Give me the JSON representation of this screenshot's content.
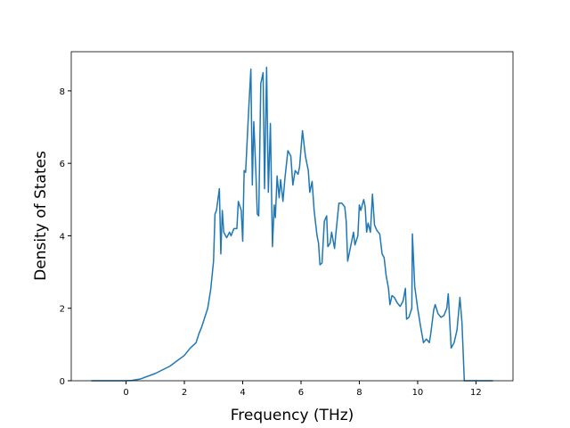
{
  "chart_data": {
    "type": "line",
    "x_label": "Frequency (THz)",
    "y_label": "Density of States",
    "x": [
      -1.19,
      -0.5,
      0,
      0.2,
      0.5,
      1.0,
      1.5,
      2.0,
      2.2,
      2.4,
      2.5,
      2.6,
      2.7,
      2.8,
      2.9,
      3.0,
      3.05,
      3.1,
      3.2,
      3.25,
      3.3,
      3.35,
      3.45,
      3.55,
      3.6,
      3.7,
      3.8,
      3.85,
      3.95,
      4.0,
      4.05,
      4.1,
      4.2,
      4.28,
      4.33,
      4.38,
      4.45,
      4.5,
      4.55,
      4.62,
      4.7,
      4.75,
      4.82,
      4.88,
      4.95,
      5.02,
      5.08,
      5.12,
      5.18,
      5.25,
      5.3,
      5.38,
      5.45,
      5.55,
      5.65,
      5.72,
      5.8,
      5.9,
      5.95,
      6.05,
      6.15,
      6.25,
      6.3,
      6.38,
      6.45,
      6.55,
      6.6,
      6.65,
      6.72,
      6.8,
      6.88,
      6.92,
      7.0,
      7.05,
      7.15,
      7.2,
      7.3,
      7.4,
      7.5,
      7.55,
      7.6,
      7.7,
      7.8,
      7.85,
      7.95,
      8.0,
      8.05,
      8.15,
      8.2,
      8.25,
      8.3,
      8.38,
      8.45,
      8.52,
      8.6,
      8.7,
      8.78,
      8.85,
      8.92,
      9.0,
      9.05,
      9.12,
      9.2,
      9.3,
      9.4,
      9.5,
      9.58,
      9.62,
      9.7,
      9.8,
      9.82,
      9.9,
      10.0,
      10.1,
      10.2,
      10.3,
      10.4,
      10.45,
      10.55,
      10.6,
      10.7,
      10.8,
      10.9,
      11.0,
      11.05,
      11.15,
      11.25,
      11.35,
      11.45,
      11.52,
      11.6,
      12.58
    ],
    "series": [
      {
        "color": "#1f77b4",
        "values": [
          0,
          0,
          0,
          0.01,
          0.05,
          0.2,
          0.4,
          0.7,
          0.9,
          1.05,
          1.3,
          1.5,
          1.75,
          2.0,
          2.5,
          3.3,
          4.6,
          4.7,
          5.3,
          3.5,
          4.7,
          4.1,
          3.95,
          4.1,
          4.0,
          4.2,
          4.2,
          4.95,
          4.7,
          3.85,
          5.8,
          5.75,
          7.4,
          8.6,
          5.4,
          7.15,
          5.8,
          4.6,
          4.55,
          8.2,
          8.5,
          5.3,
          8.65,
          5.2,
          7.1,
          3.7,
          4.85,
          4.5,
          5.65,
          5.05,
          5.55,
          4.95,
          5.6,
          6.35,
          6.2,
          5.4,
          5.8,
          5.7,
          5.9,
          6.9,
          6.2,
          5.8,
          5.2,
          5.5,
          4.7,
          4.0,
          3.8,
          3.2,
          3.25,
          4.4,
          4.55,
          3.7,
          3.8,
          4.1,
          3.65,
          4.1,
          4.9,
          4.9,
          4.8,
          4.4,
          3.3,
          3.7,
          4.1,
          3.75,
          4.0,
          4.85,
          4.7,
          5.0,
          4.8,
          4.1,
          4.35,
          4.1,
          5.15,
          4.3,
          4.15,
          4.05,
          3.5,
          3.4,
          2.9,
          2.55,
          2.1,
          2.35,
          2.3,
          2.15,
          2.05,
          2.2,
          2.55,
          1.7,
          1.75,
          2.0,
          4.05,
          2.6,
          2.0,
          1.5,
          1.05,
          1.15,
          1.05,
          1.3,
          1.95,
          2.1,
          1.85,
          1.75,
          1.8,
          2.0,
          2.4,
          0.9,
          1.05,
          1.4,
          2.3,
          1.6,
          0.0,
          0
        ]
      }
    ],
    "xlim": [
      -1.88,
      13.27
    ],
    "ylim": [
      0,
      9.08
    ],
    "xticks": [
      0,
      2,
      4,
      6,
      8,
      10,
      12
    ],
    "yticks": [
      0,
      2,
      4,
      6,
      8
    ]
  }
}
